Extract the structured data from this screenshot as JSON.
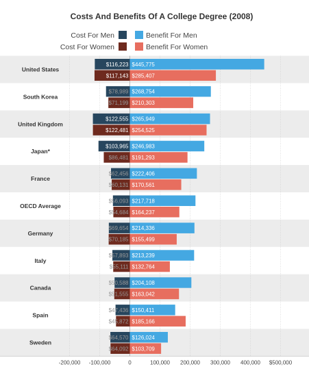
{
  "chart_data": {
    "type": "bar",
    "orientation": "horizontal-diverging",
    "title": "Costs And Benefits Of A College Degree (2008)",
    "legend": {
      "placement": "top",
      "entries": [
        {
          "label": "Cost For Men",
          "color": "#27465e"
        },
        {
          "label": "Cost For Women",
          "color": "#6e2a1e"
        },
        {
          "label": "Benefit For Men",
          "color": "#44a8e2"
        },
        {
          "label": "Benefit For Women",
          "color": "#e76e5f"
        }
      ]
    },
    "colors": {
      "cost_men": "#27465e",
      "cost_women": "#6e2a1e",
      "benefit_men": "#44a8e2",
      "benefit_women": "#e76e5f",
      "band_alt": "#ececec",
      "grid": "#cccccc"
    },
    "xlim": [
      -200000,
      500000
    ],
    "ticks": [
      {
        "value": -200000,
        "label": "-200,000"
      },
      {
        "value": -100000,
        "label": "-100,000"
      },
      {
        "value": 0,
        "label": "0"
      },
      {
        "value": 100000,
        "label": "100,000"
      },
      {
        "value": 200000,
        "label": "200,000"
      },
      {
        "value": 300000,
        "label": "300,000"
      },
      {
        "value": 400000,
        "label": "400,000"
      },
      {
        "value": 500000,
        "label": "$500,000"
      }
    ],
    "grid": true,
    "countries": [
      {
        "name": "United States",
        "men": {
          "cost": 116223,
          "cost_label": "$116,223",
          "benefit": 445775,
          "benefit_label": "$445,775"
        },
        "women": {
          "cost": 117143,
          "cost_label": "$117,143",
          "benefit": 285407,
          "benefit_label": "$285,407"
        }
      },
      {
        "name": "South Korea",
        "men": {
          "cost": 78989,
          "cost_label": "$78,989",
          "benefit": 268754,
          "benefit_label": "$268,754"
        },
        "women": {
          "cost": 71199,
          "cost_label": "$71,199",
          "benefit": 210303,
          "benefit_label": "$210,303"
        }
      },
      {
        "name": "United Kingdom",
        "men": {
          "cost": 122555,
          "cost_label": "$122,555",
          "benefit": 265949,
          "benefit_label": "$265,949"
        },
        "women": {
          "cost": 122481,
          "cost_label": "$122,481",
          "benefit": 254525,
          "benefit_label": "$254,525"
        }
      },
      {
        "name": "Japan*",
        "men": {
          "cost": 103965,
          "cost_label": "$103,965",
          "benefit": 246983,
          "benefit_label": "$246,983"
        },
        "women": {
          "cost": 86481,
          "cost_label": "$86,481",
          "benefit": 191293,
          "benefit_label": "$191,293"
        }
      },
      {
        "name": "France",
        "men": {
          "cost": 62456,
          "cost_label": "$62,456",
          "benefit": 222406,
          "benefit_label": "$222,406"
        },
        "women": {
          "cost": 60131,
          "cost_label": "$60,131",
          "benefit": 170561,
          "benefit_label": "$170,561"
        }
      },
      {
        "name": "OECD Average",
        "men": {
          "cost": 56093,
          "cost_label": "$56,093",
          "benefit": 217718,
          "benefit_label": "$217,718"
        },
        "women": {
          "cost": 54684,
          "cost_label": "$54,684",
          "benefit": 164237,
          "benefit_label": "$164,237"
        }
      },
      {
        "name": "Germany",
        "men": {
          "cost": 69654,
          "cost_label": "$69,654",
          "benefit": 214336,
          "benefit_label": "$214,336"
        },
        "women": {
          "cost": 70185,
          "cost_label": "$70,185",
          "benefit": 155499,
          "benefit_label": "$155,499"
        }
      },
      {
        "name": "Italy",
        "men": {
          "cost": 57893,
          "cost_label": "$57,893",
          "benefit": 213239,
          "benefit_label": "$213,239"
        },
        "women": {
          "cost": 55111,
          "cost_label": "$55,111",
          "benefit": 132764,
          "benefit_label": "$132,764"
        }
      },
      {
        "name": "Canada",
        "men": {
          "cost": 50588,
          "cost_label": "$50,588",
          "benefit": 204108,
          "benefit_label": "$204,108"
        },
        "women": {
          "cost": 51555,
          "cost_label": "$51,555",
          "benefit": 163042,
          "benefit_label": "$163,042"
        }
      },
      {
        "name": "Spain",
        "men": {
          "cost": 47436,
          "cost_label": "$47,436",
          "benefit": 150411,
          "benefit_label": "$150,411"
        },
        "women": {
          "cost": 45872,
          "cost_label": "$45,872",
          "benefit": 185166,
          "benefit_label": "$185,166"
        }
      },
      {
        "name": "Sweden",
        "men": {
          "cost": 64570,
          "cost_label": "$64,570",
          "benefit": 126024,
          "benefit_label": "$126,024"
        },
        "women": {
          "cost": 64092,
          "cost_label": "$64,092",
          "benefit": 103709,
          "benefit_label": "$103,709"
        }
      }
    ]
  }
}
